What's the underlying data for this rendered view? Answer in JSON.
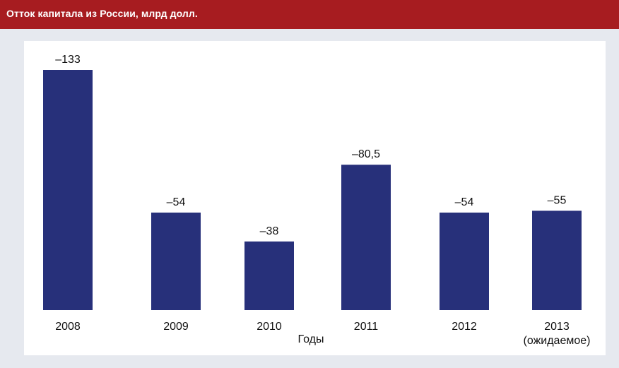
{
  "title": "Отток капитала из России, млрд долл.",
  "colors": {
    "header": "#a71c20",
    "bar": "#27307a",
    "background": "#e6e9ef",
    "panel": "#ffffff"
  },
  "chart_data": {
    "type": "bar",
    "title": "Отток капитала из России, млрд долл.",
    "xlabel": "Годы",
    "ylabel": "",
    "categories": [
      "2008",
      "2009",
      "2010",
      "2011",
      "2012",
      "2013"
    ],
    "category_notes": [
      "",
      "",
      "",
      "",
      "",
      "(ожидаемое)"
    ],
    "values": [
      -133,
      -54,
      -38,
      -80.5,
      -54,
      -55
    ],
    "value_labels": [
      "–133",
      "–54",
      "–38",
      "–80,5",
      "–54",
      "–55"
    ],
    "legend": false,
    "grid": false
  }
}
